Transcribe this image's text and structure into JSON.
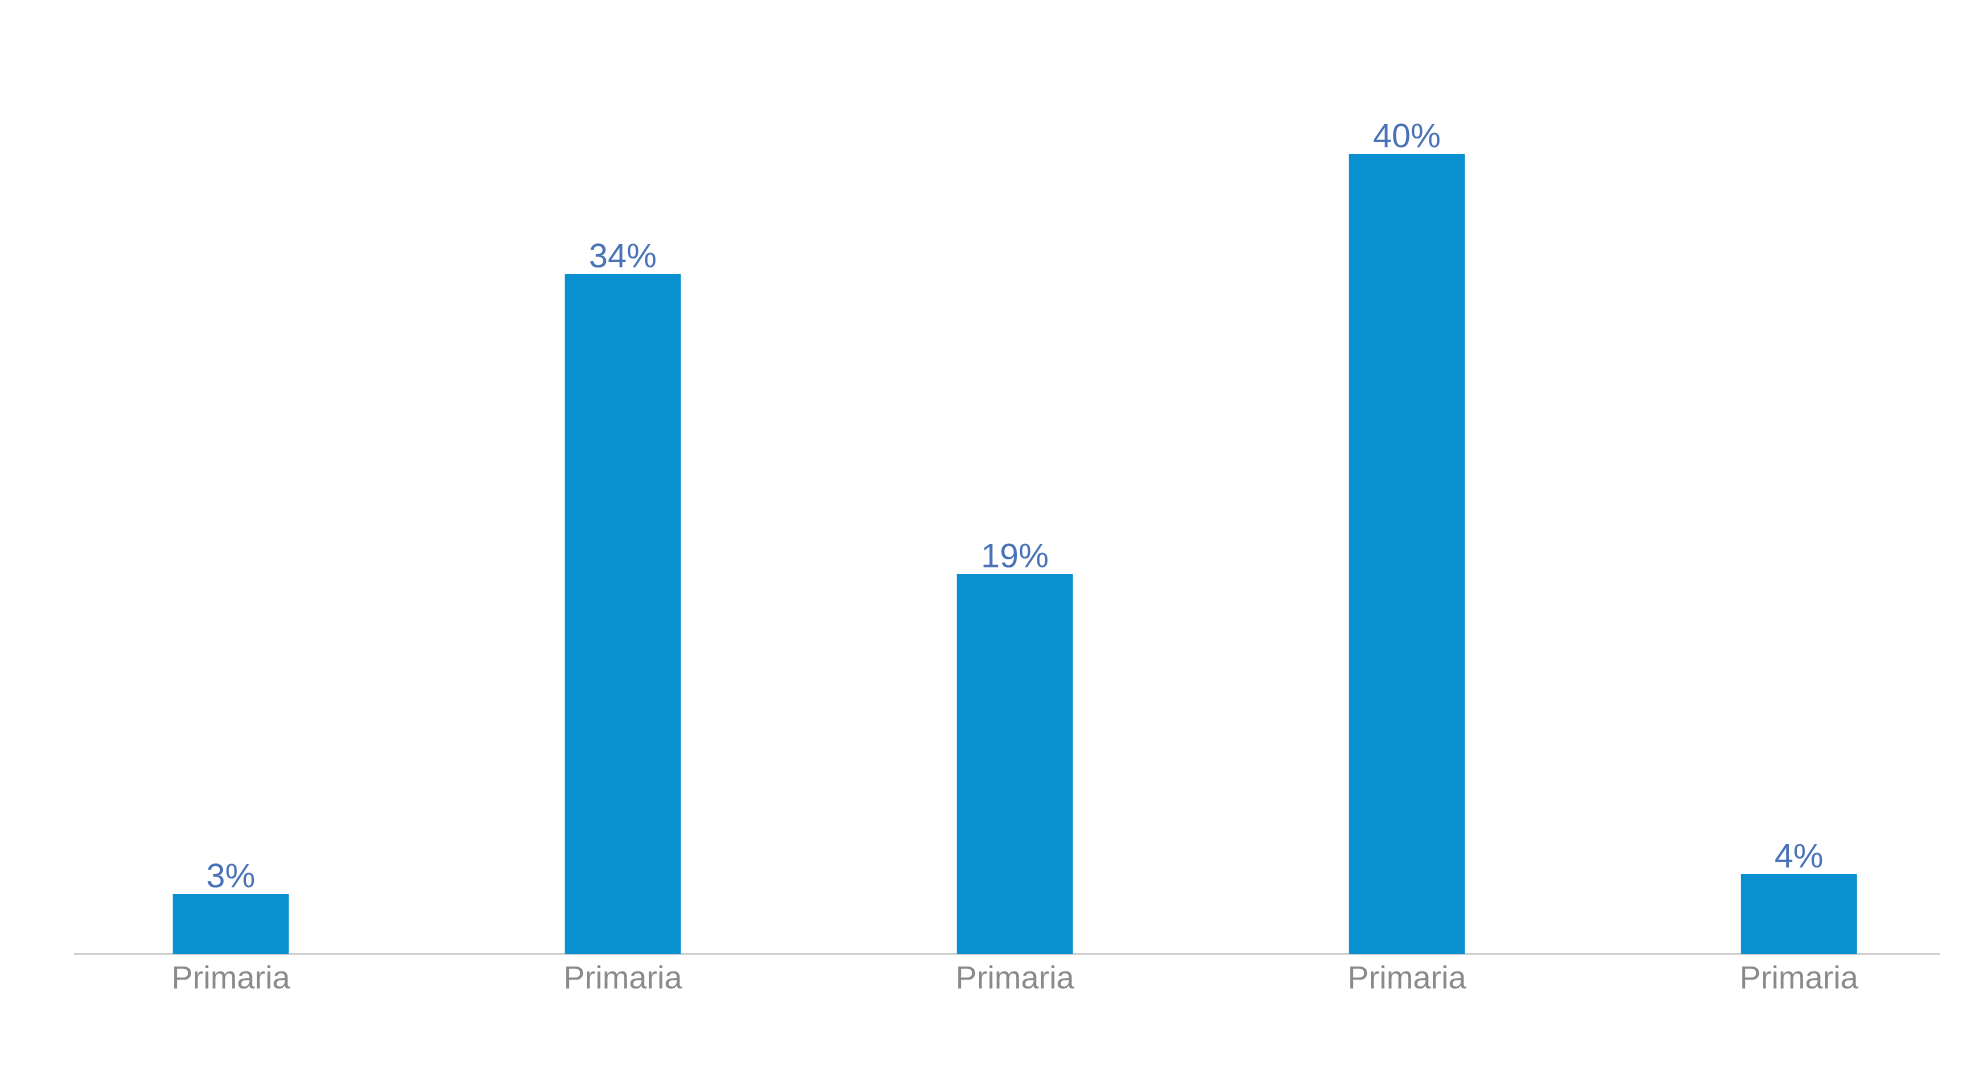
{
  "chart_data": {
    "type": "bar",
    "categories": [
      "Primaria",
      "Primaria",
      "Primaria",
      "Primaria",
      "Primaria"
    ],
    "values": [
      3,
      34,
      19,
      40,
      4
    ],
    "value_labels": [
      "3%",
      "34%",
      "19%",
      "40%",
      "4%"
    ],
    "color": "#0890d0"
  }
}
